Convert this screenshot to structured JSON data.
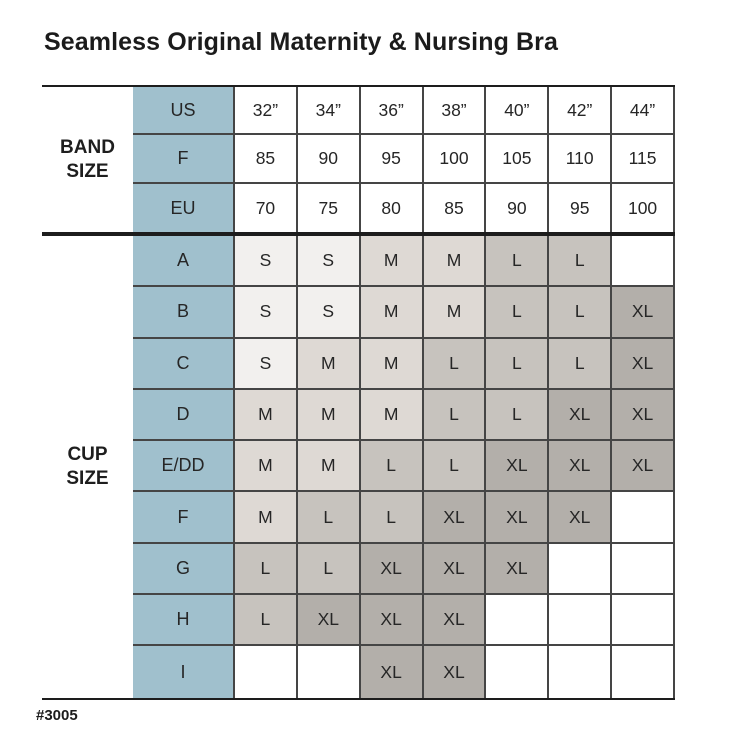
{
  "title": "Seamless Original Maternity & Nursing Bra",
  "footer": "#3005",
  "colors": {
    "header_blue": "#a0c0cd",
    "size_s": "#f2f0ee",
    "size_m": "#ded9d4",
    "size_l": "#c7c3be",
    "size_xl": "#b3afaa",
    "grid_line": "#454545",
    "section_line": "#1d1d1d"
  },
  "chart_data": {
    "type": "table",
    "title": "Seamless Original Maternity & Nursing Bra",
    "note_shading": "cell shading darkens with garment size S to XL",
    "band_size": {
      "label_lines": [
        "BAND",
        "SIZE"
      ],
      "rows": [
        {
          "header": "US",
          "values": [
            "32”",
            "34”",
            "36”",
            "38”",
            "40”",
            "42”",
            "44”"
          ]
        },
        {
          "header": "F",
          "values": [
            "85",
            "90",
            "95",
            "100",
            "105",
            "110",
            "115"
          ]
        },
        {
          "header": "EU",
          "values": [
            "70",
            "75",
            "80",
            "85",
            "90",
            "95",
            "100"
          ]
        }
      ]
    },
    "cup_size": {
      "label_lines": [
        "CUP",
        "SIZE"
      ],
      "rows": [
        {
          "header": "A",
          "values": [
            "S",
            "S",
            "M",
            "M",
            "L",
            "L",
            ""
          ]
        },
        {
          "header": "B",
          "values": [
            "S",
            "S",
            "M",
            "M",
            "L",
            "L",
            "XL"
          ]
        },
        {
          "header": "C",
          "values": [
            "S",
            "M",
            "M",
            "L",
            "L",
            "L",
            "XL"
          ]
        },
        {
          "header": "D",
          "values": [
            "M",
            "M",
            "M",
            "L",
            "L",
            "XL",
            "XL"
          ]
        },
        {
          "header": "E/DD",
          "values": [
            "M",
            "M",
            "L",
            "L",
            "XL",
            "XL",
            "XL"
          ]
        },
        {
          "header": "F",
          "values": [
            "M",
            "L",
            "L",
            "XL",
            "XL",
            "XL",
            ""
          ]
        },
        {
          "header": "G",
          "values": [
            "L",
            "L",
            "XL",
            "XL",
            "XL",
            "",
            ""
          ]
        },
        {
          "header": "H",
          "values": [
            "L",
            "XL",
            "XL",
            "XL",
            "",
            "",
            ""
          ]
        },
        {
          "header": "I",
          "values": [
            "",
            "",
            "XL",
            "XL",
            "",
            "",
            ""
          ]
        }
      ]
    }
  }
}
